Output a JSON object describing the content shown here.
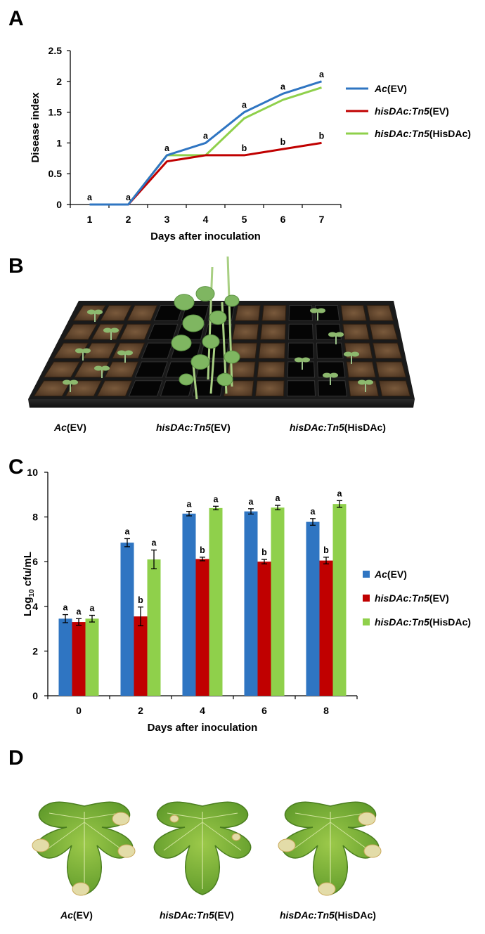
{
  "panels": {
    "a": "A",
    "b": "B",
    "c": "C",
    "d": "D"
  },
  "colors": {
    "ac": "#2f75c2",
    "tn5": "#c00000",
    "hisdac": "#8fd04b"
  },
  "legend": [
    {
      "italic": "Ac",
      "plain": "(EV)"
    },
    {
      "italic": "hisDAc:Tn5",
      "plain": "(EV)"
    },
    {
      "italic": "hisDAc:Tn5",
      "plain": "(HisDAc)"
    }
  ],
  "photo_b": {
    "description": "Seedlings in black plug tray",
    "captions": [
      {
        "italic": "Ac",
        "plain": "(EV)"
      },
      {
        "italic": "hisDAc:Tn5",
        "plain": "(EV)"
      },
      {
        "italic": "hisDAc:Tn5",
        "plain": "(HisDAc)"
      }
    ]
  },
  "photo_d": {
    "captions": [
      {
        "italic": "Ac",
        "plain": "(EV)"
      },
      {
        "italic": "hisDAc:Tn5",
        "plain": "(EV)"
      },
      {
        "italic": "hisDAc:Tn5",
        "plain": "(HisDAc)"
      }
    ]
  },
  "chart_data": [
    {
      "type": "line",
      "panel": "A",
      "xlabel": "Days after inoculation",
      "ylabel": "Disease index",
      "x": [
        1,
        2,
        3,
        4,
        5,
        6,
        7
      ],
      "ylim": [
        0,
        2.5
      ],
      "yticks": [
        "0",
        "0.5",
        "1",
        "1.5",
        "2",
        "2.5"
      ],
      "series": [
        {
          "name": "Ac(EV)",
          "values": [
            0,
            0,
            0.8,
            1.0,
            1.5,
            1.8,
            2.0
          ]
        },
        {
          "name": "hisDAc:Tn5(EV)",
          "values": [
            0,
            0,
            0.7,
            0.8,
            0.8,
            0.9,
            1.0
          ]
        },
        {
          "name": "hisDAc:Tn5(HisDAc)",
          "values": [
            0,
            0,
            0.8,
            0.8,
            1.4,
            1.7,
            1.9
          ]
        }
      ],
      "annotations": [
        {
          "x": 1,
          "y": 0,
          "text": "a"
        },
        {
          "x": 2,
          "y": 0,
          "text": "a"
        },
        {
          "x": 3,
          "y": 0.8,
          "text": "a"
        },
        {
          "x": 4,
          "y": 1.0,
          "text": "a"
        },
        {
          "x": 5,
          "y": 1.5,
          "text": "a"
        },
        {
          "x": 6,
          "y": 1.8,
          "text": "a"
        },
        {
          "x": 7,
          "y": 2.0,
          "text": "a"
        },
        {
          "x": 5,
          "y": 0.8,
          "text": "b"
        },
        {
          "x": 6,
          "y": 0.9,
          "text": "b"
        },
        {
          "x": 7,
          "y": 1.0,
          "text": "b"
        }
      ],
      "legend_position": "right"
    },
    {
      "type": "bar",
      "panel": "C",
      "xlabel": "Days after inoculation",
      "ylabel": "Log10 cfu/mL",
      "categories": [
        "0",
        "2",
        "4",
        "6",
        "8"
      ],
      "ylim": [
        0,
        10
      ],
      "yticks": [
        "0",
        "2",
        "4",
        "6",
        "8",
        "10"
      ],
      "series": [
        {
          "name": "Ac(EV)",
          "values": [
            3.45,
            6.85,
            8.15,
            8.25,
            7.78
          ],
          "errors": [
            0.18,
            0.18,
            0.1,
            0.12,
            0.15
          ],
          "labels": [
            "a",
            "a",
            "a",
            "a",
            "a"
          ]
        },
        {
          "name": "hisDAc:Tn5(EV)",
          "values": [
            3.3,
            3.55,
            6.12,
            6.0,
            6.05
          ],
          "errors": [
            0.15,
            0.42,
            0.08,
            0.1,
            0.15
          ],
          "labels": [
            "a",
            "b",
            "b",
            "b",
            "b"
          ]
        },
        {
          "name": "hisDAc:Tn5(HisDAc)",
          "values": [
            3.45,
            6.1,
            8.4,
            8.42,
            8.58
          ],
          "errors": [
            0.15,
            0.42,
            0.08,
            0.1,
            0.15
          ],
          "labels": [
            "a",
            "a",
            "a",
            "a",
            "a"
          ]
        }
      ],
      "legend_position": "right"
    }
  ]
}
